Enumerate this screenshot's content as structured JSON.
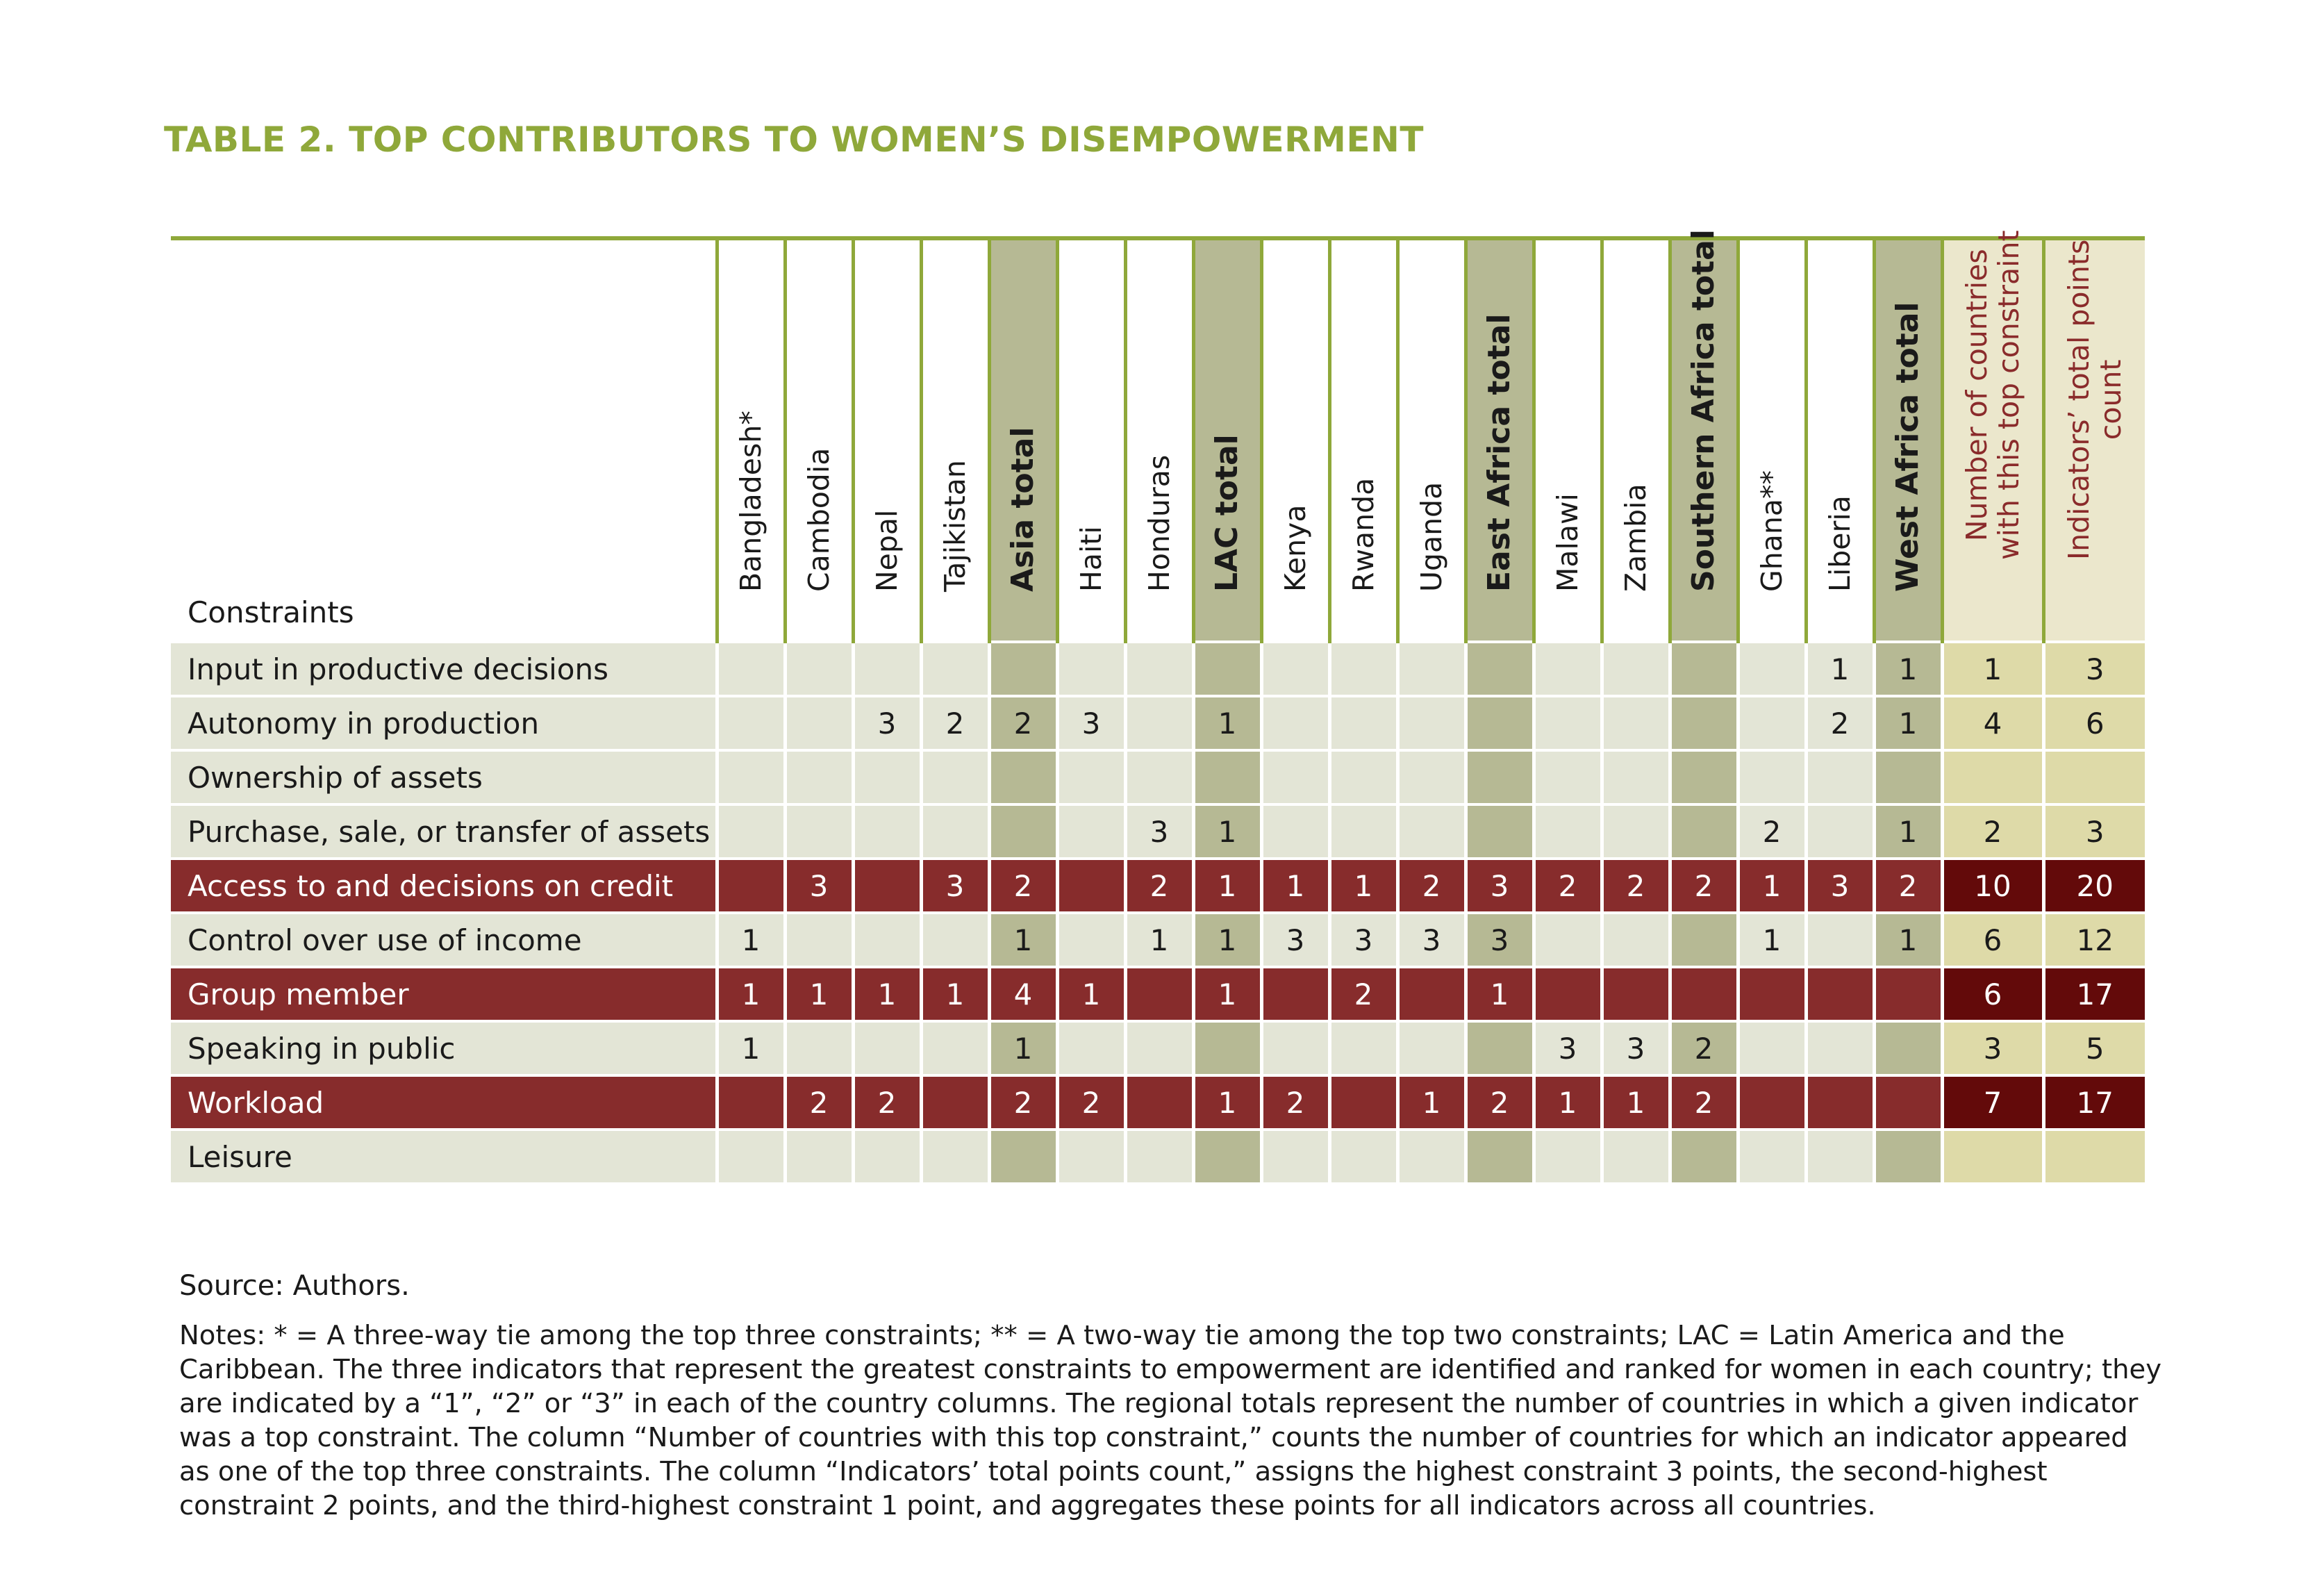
{
  "title": "TABLE 2. TOP CONTRIBUTORS TO WOMEN’S DISEMPOWERMENT",
  "table": {
    "constraints_header": "Constraints",
    "columns": [
      {
        "label": "Bangladesh*",
        "kind": "country"
      },
      {
        "label": "Cambodia",
        "kind": "country"
      },
      {
        "label": "Nepal",
        "kind": "country"
      },
      {
        "label": "Tajikistan",
        "kind": "country"
      },
      {
        "label": "Asia total",
        "kind": "regional"
      },
      {
        "label": "Haiti",
        "kind": "country"
      },
      {
        "label": "Honduras",
        "kind": "country"
      },
      {
        "label": "LAC total",
        "kind": "regional"
      },
      {
        "label": "Kenya",
        "kind": "country"
      },
      {
        "label": "Rwanda",
        "kind": "country"
      },
      {
        "label": "Uganda",
        "kind": "country"
      },
      {
        "label": "East Africa total",
        "kind": "regional"
      },
      {
        "label": "Malawi",
        "kind": "country"
      },
      {
        "label": "Zambia",
        "kind": "country"
      },
      {
        "label": "Southern Africa total",
        "kind": "regional"
      },
      {
        "label": "Ghana**",
        "kind": "country"
      },
      {
        "label": "Liberia",
        "kind": "country"
      },
      {
        "label": "West Africa total",
        "kind": "regional"
      },
      {
        "label": "Number of countries\nwith this top constraint",
        "kind": "summary"
      },
      {
        "label": "Indicators’ total points\ncount",
        "kind": "summary"
      }
    ],
    "rows": [
      {
        "label": "Input in productive decisions",
        "highlight": false,
        "cells": [
          "",
          "",
          "",
          "",
          "",
          "",
          "",
          "",
          "",
          "",
          "",
          "",
          "",
          "",
          "",
          "",
          "1",
          "1",
          "1",
          "3"
        ]
      },
      {
        "label": "Autonomy in production",
        "highlight": false,
        "cells": [
          "",
          "",
          "3",
          "2",
          "2",
          "3",
          "",
          "1",
          "",
          "",
          "",
          "",
          "",
          "",
          "",
          "",
          "2",
          "1",
          "4",
          "6"
        ]
      },
      {
        "label": "Ownership of assets",
        "highlight": false,
        "cells": [
          "",
          "",
          "",
          "",
          "",
          "",
          "",
          "",
          "",
          "",
          "",
          "",
          "",
          "",
          "",
          "",
          "",
          "",
          "",
          ""
        ]
      },
      {
        "label": "Purchase, sale, or transfer of assets",
        "highlight": false,
        "cells": [
          "",
          "",
          "",
          "",
          "",
          "",
          "3",
          "1",
          "",
          "",
          "",
          "",
          "",
          "",
          "",
          "2",
          "",
          "1",
          "2",
          "3"
        ]
      },
      {
        "label": "Access to and decisions on credit",
        "highlight": true,
        "cells": [
          "",
          "3",
          "",
          "3",
          "2",
          "",
          "2",
          "1",
          "1",
          "1",
          "2",
          "3",
          "2",
          "2",
          "2",
          "1",
          "3",
          "2",
          "10",
          "20"
        ]
      },
      {
        "label": "Control over use of income",
        "highlight": false,
        "cells": [
          "1",
          "",
          "",
          "",
          "1",
          "",
          "1",
          "1",
          "3",
          "3",
          "3",
          "3",
          "",
          "",
          "",
          "1",
          "",
          "1",
          "6",
          "12"
        ]
      },
      {
        "label": "Group member",
        "highlight": true,
        "cells": [
          "1",
          "1",
          "1",
          "1",
          "4",
          "1",
          "",
          "1",
          "",
          "2",
          "",
          "1",
          "",
          "",
          "",
          "",
          "",
          "",
          "6",
          "17"
        ]
      },
      {
        "label": "Speaking in public",
        "highlight": false,
        "cells": [
          "1",
          "",
          "",
          "",
          "1",
          "",
          "",
          "",
          "",
          "",
          "",
          "",
          "3",
          "3",
          "2",
          "",
          "",
          "",
          "3",
          "5"
        ]
      },
      {
        "label": "Workload",
        "highlight": true,
        "cells": [
          "",
          "2",
          "2",
          "",
          "2",
          "2",
          "",
          "1",
          "2",
          "",
          "1",
          "2",
          "1",
          "1",
          "2",
          "",
          "",
          "",
          "7",
          "17"
        ]
      },
      {
        "label": "Leisure",
        "highlight": false,
        "cells": [
          "",
          "",
          "",
          "",
          "",
          "",
          "",
          "",
          "",
          "",
          "",
          "",
          "",
          "",
          "",
          "",
          "",
          "",
          "",
          ""
        ]
      }
    ]
  },
  "source": "Source: Authors.",
  "notes": "Notes: * = A three-way tie among the top three constraints; ** = A two-way tie among the top two constraints; LAC = Latin America and the Caribbean. The three indicators that represent the greatest constraints to empowerment are identified and ranked for women in each country; they are indicated by a “1”, “2” or “3” in each of the country columns. The regional totals represent the number of countries in which a given indicator was a top constraint. The column “Number of countries with this top constraint,” counts the number of countries for which an indicator appeared as one of the top three constraints. The column “Indicators’ total points count,” assigns the highest constraint 3 points, the second-highest constraint 2 points, and the third-highest constraint 1 point, and aggregates these points for all indicators across all countries."
}
